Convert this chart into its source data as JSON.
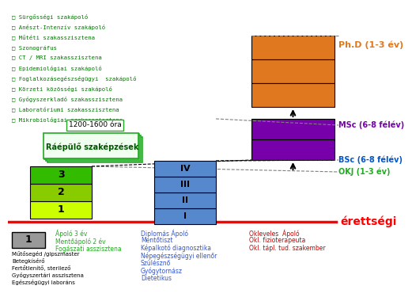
{
  "bg": "#ffffff",
  "erettsegi": "érettségi",
  "phd_label": "Ph.D (1-3 év)",
  "msc_label": "MSc (6-8 félév)",
  "bsc_label": "BSc (6-8 félév)",
  "okj_label": "OKJ (1-3 év)",
  "list_items": [
    "□ Sürgősségi szakápoló",
    "□ Anészt-Intenzív szakápoló",
    "□ Műtéti szakasszisztena",
    "□ Szonográfus",
    "□ CT / MRI szakasszisztena",
    "□ Epidemiológiai szakápoló",
    "□ Foglalkozásegészségügyi  szakápoló",
    "□ Körzeti közösségi szakápoló",
    "□ Gyógyszerkladó szakasszisztena",
    "□ Laboratóriumi szakasszisztena",
    "□ Mikrobiológiai szakasszisztena"
  ],
  "hours_label": "1200-1600 óra",
  "raepulo_label": "Ráépülő szaképzések",
  "orange_color": "#e07820",
  "purple_color": "#7700aa",
  "blue_box_color": "#5588cc",
  "green_box_colors": [
    "#ccff00",
    "#88cc00",
    "#33bb00"
  ],
  "green_box_labels": [
    "1",
    "2",
    "3"
  ],
  "blue_box_labels": [
    "I",
    "II",
    "III",
    "IV"
  ],
  "bottom_gray_label": "1",
  "bottom_left_black": [
    "Műtősegéd /gipszmaster",
    "Betegkísérő",
    "Fertőtlenítő, sterilező",
    "Gyógyszertári asszisztena",
    "Egészségügyi laboráns"
  ],
  "bottom_green": [
    "Ápoló 3 év",
    "Mentőápoló 2 év",
    "Fogászati asszisztena"
  ],
  "bottom_blue": [
    "Diplomás Ápoló",
    "Mentőtiszt",
    "Képalkotó diagnosztika",
    "Népegészségügyi ellenőr",
    "Szülésznő",
    "Gyógytornász",
    "Dietetikus"
  ],
  "bottom_red": [
    "Okleveles  Ápoló",
    "Okl. fizioterapeuta",
    "Okl. tápl. tud. szakember"
  ]
}
